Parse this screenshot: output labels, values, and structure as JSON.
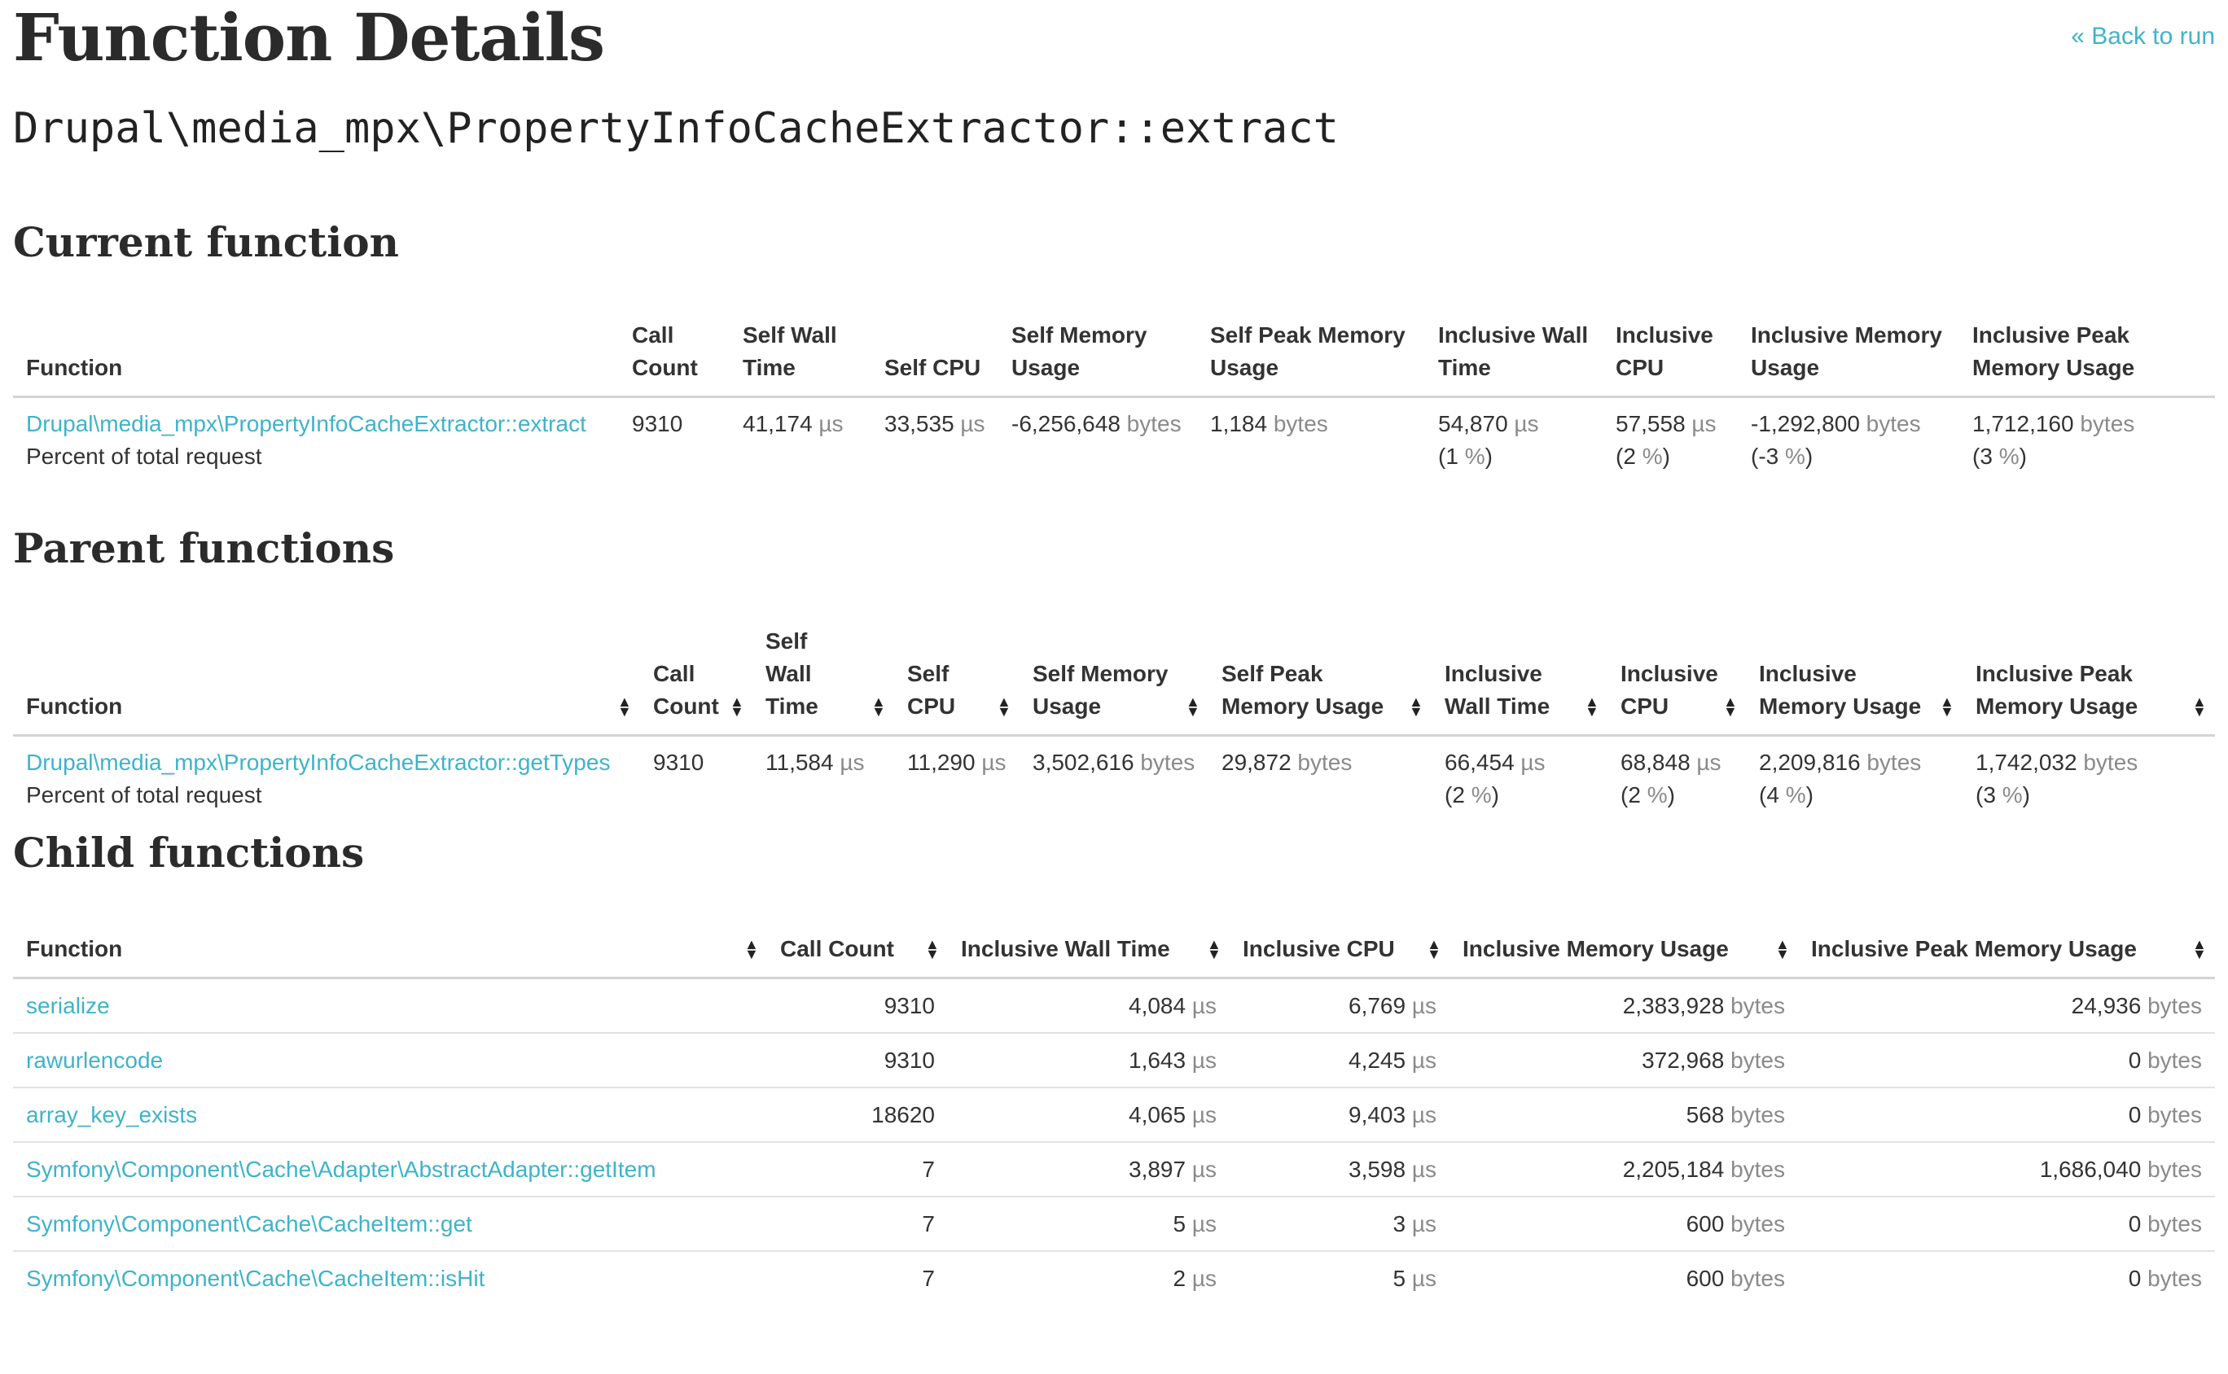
{
  "page": {
    "title": "Function Details",
    "back_link": "« Back to run",
    "function_name": "Drupal\\media_mpx\\PropertyInfoCacheExtractor::extract"
  },
  "current": {
    "heading": "Current function",
    "headers": [
      "Function",
      "Call Count",
      "Self Wall Time",
      "Self CPU",
      "Self Memory Usage",
      "Self Peak Memory Usage",
      "Inclusive Wall Time",
      "Inclusive CPU",
      "Inclusive Memory Usage",
      "Inclusive Peak Memory Usage"
    ],
    "row": {
      "function": "Drupal\\media_mpx\\PropertyInfoCacheExtractor::extract",
      "percent_label": "Percent of total request",
      "call_count": "9310",
      "self_wall": "41,174",
      "self_wall_unit": "µs",
      "self_cpu": "33,535",
      "self_cpu_unit": "µs",
      "self_mem": "-6,256,648",
      "self_mem_unit": "bytes",
      "self_peak": "1,184",
      "self_peak_unit": "bytes",
      "incl_wall": "54,870",
      "incl_wall_unit": "µs",
      "incl_wall_pct": "1",
      "incl_wall_pct_unit": "%",
      "incl_cpu": "57,558",
      "incl_cpu_unit": "µs",
      "incl_cpu_pct": "2",
      "incl_cpu_pct_unit": "%",
      "incl_mem": "-1,292,800",
      "incl_mem_unit": "bytes",
      "incl_mem_pct": "-3",
      "incl_mem_pct_unit": "%",
      "incl_peak": "1,712,160",
      "incl_peak_unit": "bytes",
      "incl_peak_pct": "3",
      "incl_peak_pct_unit": "%"
    }
  },
  "parent": {
    "heading": "Parent functions",
    "headers": [
      "Function",
      "Call Count",
      "Self Wall Time",
      "Self CPU",
      "Self Memory Usage",
      "Self Peak Memory Usage",
      "Inclusive Wall Time",
      "Inclusive CPU",
      "Inclusive Memory Usage",
      "Inclusive Peak Memory Usage"
    ],
    "row": {
      "function": "Drupal\\media_mpx\\PropertyInfoCacheExtractor::getTypes",
      "percent_label": "Percent of total request",
      "call_count": "9310",
      "self_wall": "11,584",
      "self_wall_unit": "µs",
      "self_cpu": "11,290",
      "self_cpu_unit": "µs",
      "self_mem": "3,502,616",
      "self_mem_unit": "bytes",
      "self_peak": "29,872",
      "self_peak_unit": "bytes",
      "incl_wall": "66,454",
      "incl_wall_unit": "µs",
      "incl_wall_pct": "2",
      "incl_wall_pct_unit": "%",
      "incl_cpu": "68,848",
      "incl_cpu_unit": "µs",
      "incl_cpu_pct": "2",
      "incl_cpu_pct_unit": "%",
      "incl_mem": "2,209,816",
      "incl_mem_unit": "bytes",
      "incl_mem_pct": "4",
      "incl_mem_pct_unit": "%",
      "incl_peak": "1,742,032",
      "incl_peak_unit": "bytes",
      "incl_peak_pct": "3",
      "incl_peak_pct_unit": "%"
    }
  },
  "child": {
    "heading": "Child functions",
    "headers": [
      "Function",
      "Call Count",
      "Inclusive Wall Time",
      "Inclusive CPU",
      "Inclusive Memory Usage",
      "Inclusive Peak Memory Usage"
    ],
    "rows": [
      {
        "function": "serialize",
        "calls": "9310",
        "wall": "4,084",
        "wall_unit": "µs",
        "cpu": "6,769",
        "cpu_unit": "µs",
        "mem": "2,383,928",
        "mem_unit": "bytes",
        "peak": "24,936",
        "peak_unit": "bytes"
      },
      {
        "function": "rawurlencode",
        "calls": "9310",
        "wall": "1,643",
        "wall_unit": "µs",
        "cpu": "4,245",
        "cpu_unit": "µs",
        "mem": "372,968",
        "mem_unit": "bytes",
        "peak": "0",
        "peak_unit": "bytes"
      },
      {
        "function": "array_key_exists",
        "calls": "18620",
        "wall": "4,065",
        "wall_unit": "µs",
        "cpu": "9,403",
        "cpu_unit": "µs",
        "mem": "568",
        "mem_unit": "bytes",
        "peak": "0",
        "peak_unit": "bytes"
      },
      {
        "function": "Symfony\\Component\\Cache\\Adapter\\AbstractAdapter::getItem",
        "calls": "7",
        "wall": "3,897",
        "wall_unit": "µs",
        "cpu": "3,598",
        "cpu_unit": "µs",
        "mem": "2,205,184",
        "mem_unit": "bytes",
        "peak": "1,686,040",
        "peak_unit": "bytes"
      },
      {
        "function": "Symfony\\Component\\Cache\\CacheItem::get",
        "calls": "7",
        "wall": "5",
        "wall_unit": "µs",
        "cpu": "3",
        "cpu_unit": "µs",
        "mem": "600",
        "mem_unit": "bytes",
        "peak": "0",
        "peak_unit": "bytes"
      },
      {
        "function": "Symfony\\Component\\Cache\\CacheItem::isHit",
        "calls": "7",
        "wall": "2",
        "wall_unit": "µs",
        "cpu": "5",
        "cpu_unit": "µs",
        "mem": "600",
        "mem_unit": "bytes",
        "peak": "0",
        "peak_unit": "bytes"
      }
    ]
  },
  "icons": {
    "sort": "sort-icon"
  },
  "colors": {
    "link": "#3fb3c9",
    "unit": "#8a8a8a",
    "border": "#d4d4d4"
  }
}
